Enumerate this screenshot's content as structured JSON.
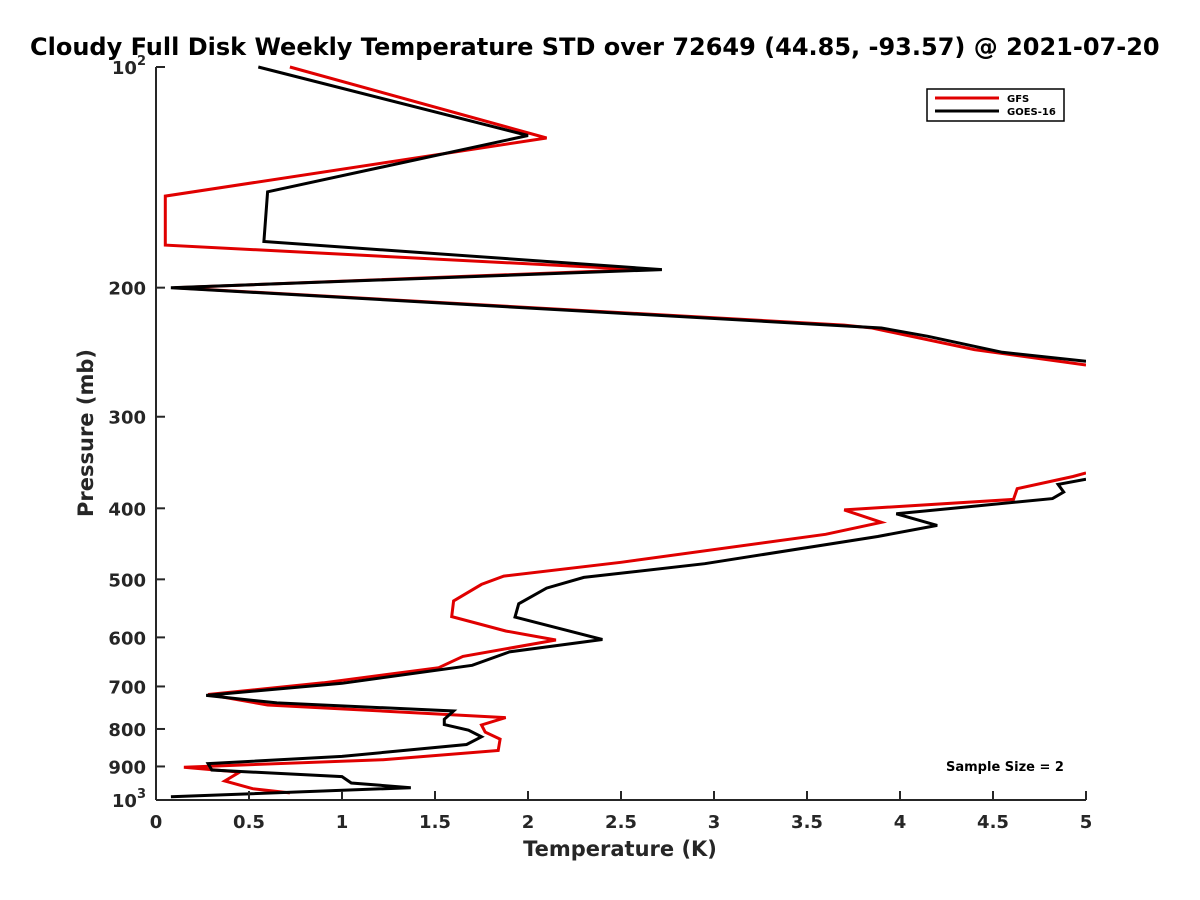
{
  "chart_data": {
    "type": "line",
    "title": "Cloudy Full Disk Weekly Temperature STD over 72649 (44.85, -93.57) @ 2021-07-20",
    "xlabel": "Temperature (K)",
    "ylabel": "Pressure (mb)",
    "xlim": [
      0,
      5
    ],
    "ylim": [
      100,
      1000
    ],
    "yscale": "log",
    "y_reversed": true,
    "xticks": [
      "0",
      "0.5",
      "1",
      "1.5",
      "2",
      "2.5",
      "3",
      "3.5",
      "4",
      "4.5",
      "5"
    ],
    "xtick_values": [
      0,
      0.5,
      1,
      1.5,
      2,
      2.5,
      3,
      3.5,
      4,
      4.5,
      5
    ],
    "yticks": [
      {
        "value": 100,
        "base": "10",
        "exp": "2"
      },
      {
        "value": 200,
        "label": "200"
      },
      {
        "value": 300,
        "label": "300"
      },
      {
        "value": 400,
        "label": "400"
      },
      {
        "value": 500,
        "label": "500"
      },
      {
        "value": 600,
        "label": "600"
      },
      {
        "value": 700,
        "label": "700"
      },
      {
        "value": 800,
        "label": "800"
      },
      {
        "value": 900,
        "label": "900"
      },
      {
        "value": 1000,
        "base": "10",
        "exp": "3"
      }
    ],
    "legend_position": "top-right",
    "annotation": "Sample Size = 2",
    "series": [
      {
        "name": "GFS",
        "color": "#e00000",
        "segments": [
          [
            [
              0.72,
              100
            ],
            [
              2.1,
              125
            ],
            [
              0.05,
              150
            ],
            [
              0.05,
              175
            ],
            [
              2.6,
              189
            ],
            [
              0.1,
              200
            ],
            [
              3.7,
              225
            ],
            [
              3.85,
              227
            ],
            [
              4.4,
              243
            ],
            [
              5.0,
              255
            ]
          ],
          [
            [
              5.0,
              358
            ],
            [
              4.93,
              362
            ],
            [
              4.63,
              376
            ],
            [
              4.61,
              389
            ],
            [
              3.7,
              402
            ],
            [
              3.9,
              418
            ],
            [
              3.6,
              434
            ],
            [
              2.5,
              474
            ],
            [
              1.87,
              495
            ],
            [
              1.75,
              508
            ],
            [
              1.6,
              535
            ],
            [
              1.59,
              562
            ],
            [
              1.88,
              588
            ],
            [
              2.15,
              605
            ],
            [
              1.65,
              637
            ],
            [
              1.52,
              660
            ],
            [
              0.9,
              692
            ],
            [
              0.28,
              718
            ],
            [
              0.6,
              742
            ],
            [
              1.88,
              772
            ],
            [
              1.75,
              790
            ],
            [
              1.77,
              808
            ],
            [
              1.85,
              826
            ],
            [
              1.84,
              856
            ],
            [
              1.22,
              881
            ],
            [
              0.15,
              902
            ],
            [
              0.45,
              916
            ],
            [
              0.37,
              942
            ],
            [
              0.52,
              965
            ],
            [
              0.72,
              978
            ]
          ]
        ]
      },
      {
        "name": "GOES-16",
        "color": "#000000",
        "segments": [
          [
            [
              0.55,
              100
            ],
            [
              2.0,
              124
            ],
            [
              0.6,
              148
            ],
            [
              0.58,
              173
            ],
            [
              2.72,
              189
            ],
            [
              0.08,
              200
            ],
            [
              3.9,
              227
            ],
            [
              4.15,
              233
            ],
            [
              4.55,
              245
            ],
            [
              5.0,
              252
            ]
          ],
          [
            [
              5.0,
              365
            ],
            [
              4.85,
              371
            ],
            [
              4.88,
              380
            ],
            [
              4.82,
              388
            ],
            [
              3.98,
              407
            ],
            [
              4.2,
              422
            ],
            [
              3.88,
              437
            ],
            [
              2.95,
              476
            ],
            [
              2.3,
              497
            ],
            [
              2.1,
              514
            ],
            [
              1.95,
              540
            ],
            [
              1.93,
              563
            ],
            [
              2.4,
              604
            ],
            [
              1.9,
              628
            ],
            [
              1.7,
              655
            ],
            [
              1.0,
              693
            ],
            [
              0.27,
              720
            ],
            [
              0.65,
              737
            ],
            [
              1.6,
              756
            ],
            [
              1.55,
              776
            ],
            [
              1.55,
              789
            ],
            [
              1.68,
              803
            ],
            [
              1.75,
              820
            ],
            [
              1.67,
              840
            ],
            [
              1.0,
              872
            ],
            [
              0.28,
              892
            ],
            [
              0.3,
              910
            ],
            [
              1.0,
              929
            ],
            [
              1.05,
              948
            ],
            [
              1.37,
              962
            ],
            [
              0.08,
              990
            ]
          ]
        ]
      }
    ]
  }
}
